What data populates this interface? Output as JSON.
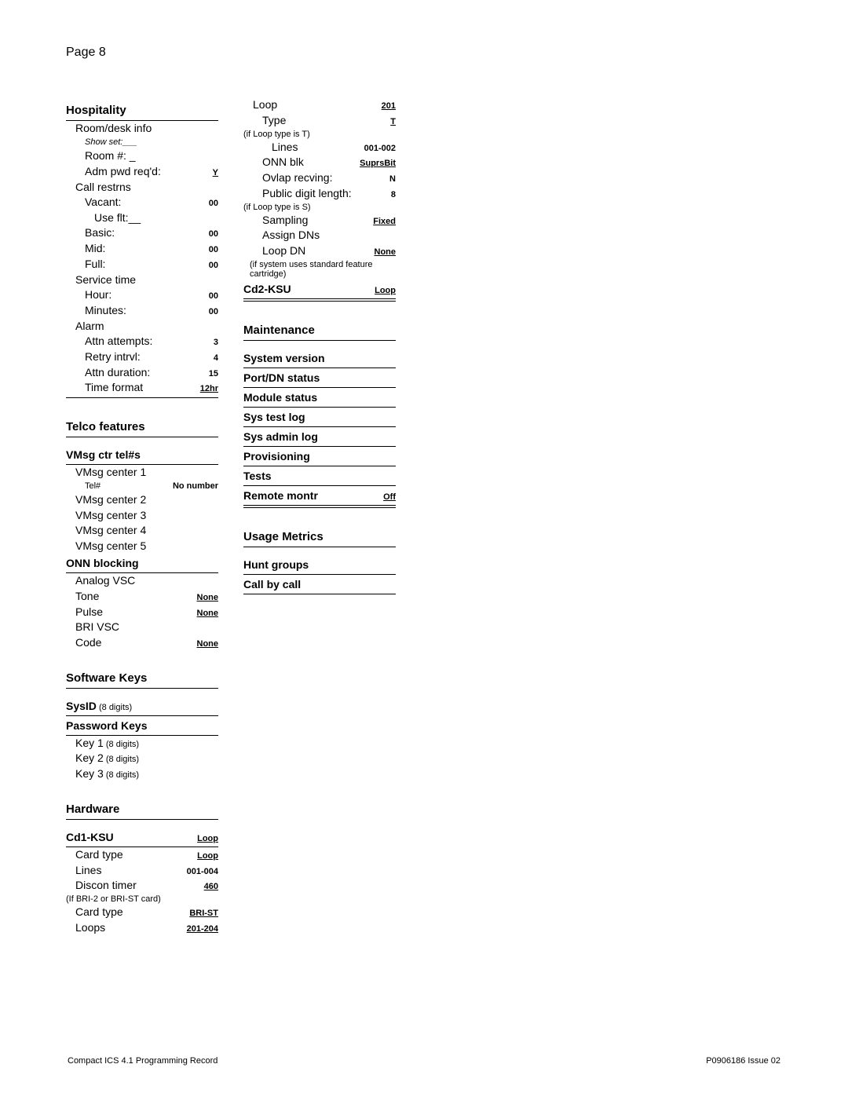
{
  "page": {
    "header": "Page  8"
  },
  "footer": {
    "left": "Compact ICS 4.1 Programming Record",
    "right": "P0906186 Issue 02"
  },
  "hospitality": {
    "title": "Hospitality",
    "room_desk": "Room/desk info",
    "show_set": "Show set:___",
    "room_num": "Room #: _",
    "adm_pwd": {
      "label": "Adm pwd req'd:",
      "val": "Y"
    },
    "call_restrns": "Call restrns",
    "vacant": {
      "label": "Vacant:",
      "val": "00"
    },
    "use_flt": "Use flt:__",
    "basic": {
      "label": "Basic:",
      "val": "00"
    },
    "mid": {
      "label": "Mid:",
      "val": "00"
    },
    "full": {
      "label": "Full:",
      "val": "00"
    },
    "service_time": "Service time",
    "hour": {
      "label": "Hour:",
      "val": "00"
    },
    "minutes": {
      "label": "Minutes:",
      "val": "00"
    },
    "alarm": "Alarm",
    "attn_attempts": {
      "label": "Attn attempts:",
      "val": "3"
    },
    "retry_intrvl": {
      "label": "Retry intrvl:",
      "val": "4"
    },
    "attn_duration": {
      "label": "Attn duration:",
      "val": "15"
    },
    "time_format": {
      "label": "Time format",
      "val": "12hr"
    }
  },
  "telco": {
    "title": "Telco features",
    "vmsg_title": "VMsg ctr tel#s",
    "vmsg1": "VMsg center 1",
    "tel": {
      "label": "Tel#",
      "val": "No number"
    },
    "vmsg2": "VMsg center 2",
    "vmsg3": "VMsg center 3",
    "vmsg4": "VMsg center 4",
    "vmsg5": "VMsg center 5",
    "onn_title": "ONN blocking",
    "analog": "Analog VSC",
    "tone": {
      "label": "Tone",
      "val": "None"
    },
    "pulse": {
      "label": "Pulse",
      "val": "None"
    },
    "bri": "BRI VSC",
    "code": {
      "label": "Code",
      "val": "None"
    }
  },
  "software": {
    "title": "Software Keys",
    "sysid": {
      "label": "SysID",
      "note": " (8 digits)"
    },
    "pwd_title": "Password Keys",
    "key1": {
      "label": "Key 1",
      "note": " (8 digits)"
    },
    "key2": {
      "label": "Key 2",
      "note": " (8 digits)"
    },
    "key3": {
      "label": "Key 3",
      "note": " (8 digits)"
    }
  },
  "hardware": {
    "title": "Hardware",
    "cd1": {
      "label": "Cd1-KSU",
      "val": "Loop"
    },
    "card_type": {
      "label": "Card type",
      "val": "Loop"
    },
    "lines": {
      "label": "Lines",
      "val": "001-004"
    },
    "discon": {
      "label": "Discon timer",
      "val": "460"
    },
    "if_bri": "(If BRI-2 or BRI-ST card)",
    "card_type2": {
      "label": "Card type",
      "val": "BRI-ST"
    },
    "loops": {
      "label": "Loops",
      "val": "201-204"
    }
  },
  "col2": {
    "loop": {
      "label": "Loop",
      "val": "201"
    },
    "type": {
      "label": "Type",
      "val": "T"
    },
    "if_t": "(if Loop type is  T)",
    "lines": {
      "label": "Lines",
      "val": "001-002"
    },
    "onnblk": {
      "label": "ONN blk",
      "val": "SuprsBit"
    },
    "ovlap": {
      "label": "Ovlap recving:",
      "val": "N"
    },
    "pdl": {
      "label": "Public digit length:",
      "val": "8"
    },
    "if_s": "(if Loop type is S)",
    "sampling": {
      "label": "Sampling",
      "val": "Fixed"
    },
    "assign": "Assign DNs",
    "loopdn": {
      "label": "Loop DN",
      "val": "None"
    },
    "if_std": "(if system uses standard feature cartridge)",
    "cd2": {
      "label": "Cd2-KSU",
      "val": "Loop"
    }
  },
  "maintenance": {
    "title": "Maintenance",
    "items": [
      "System version",
      "Port/DN status",
      "Module status",
      "Sys test log",
      "Sys admin log",
      "Provisioning",
      "Tests"
    ],
    "remote": {
      "label": "Remote montr",
      "val": "Off"
    }
  },
  "usage": {
    "title": "Usage Metrics",
    "items": [
      "Hunt groups",
      "Call by call"
    ]
  }
}
